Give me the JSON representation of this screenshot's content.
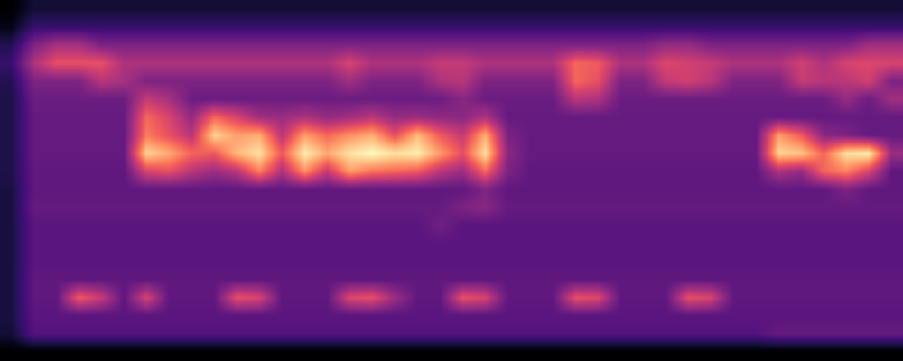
{
  "chart_data": {
    "type": "heatmap",
    "tick_labels": false,
    "cells": [
      [
        15,
        22,
        22,
        22,
        22,
        22,
        22,
        22,
        22,
        22,
        22,
        22,
        22,
        22,
        22,
        22,
        22,
        22,
        22,
        22,
        22,
        22,
        22,
        22,
        22,
        22,
        22,
        22,
        22,
        22,
        22,
        22,
        22,
        22,
        22,
        22,
        22,
        22,
        22,
        22
      ],
      [
        18,
        28,
        28,
        28,
        28,
        28,
        28,
        28,
        28,
        28,
        28,
        28,
        28,
        28,
        28,
        28,
        28,
        28,
        28,
        28,
        28,
        28,
        28,
        28,
        28,
        28,
        28,
        28,
        28,
        28,
        28,
        28,
        28,
        28,
        28,
        28,
        28,
        28,
        28,
        28
      ],
      [
        25,
        40,
        47,
        47,
        40,
        40,
        40,
        40,
        40,
        40,
        40,
        40,
        40,
        40,
        40,
        40,
        40,
        40,
        40,
        40,
        40,
        40,
        40,
        40,
        40,
        40,
        40,
        40,
        40,
        44,
        44,
        40,
        40,
        40,
        40,
        40,
        40,
        40,
        46,
        46
      ],
      [
        28,
        48,
        58,
        58,
        58,
        48,
        48,
        48,
        48,
        48,
        48,
        48,
        48,
        48,
        48,
        55,
        48,
        48,
        48,
        52,
        52,
        48,
        48,
        48,
        48,
        62,
        60,
        48,
        48,
        56,
        54,
        52,
        48,
        48,
        48,
        54,
        48,
        55,
        56,
        55
      ],
      [
        25,
        40,
        40,
        40,
        50,
        47,
        40,
        40,
        40,
        40,
        40,
        40,
        40,
        40,
        40,
        46,
        40,
        40,
        40,
        48,
        50,
        40,
        40,
        40,
        40,
        62,
        58,
        40,
        40,
        52,
        54,
        50,
        40,
        40,
        40,
        52,
        50,
        50,
        54,
        40
      ],
      [
        24,
        37,
        37,
        37,
        37,
        37,
        52,
        47,
        37,
        37,
        37,
        37,
        37,
        37,
        37,
        37,
        37,
        37,
        37,
        37,
        42,
        37,
        37,
        37,
        37,
        50,
        48,
        37,
        37,
        37,
        37,
        37,
        37,
        37,
        37,
        37,
        37,
        44,
        37,
        46
      ],
      [
        24,
        36,
        36,
        36,
        36,
        36,
        62,
        55,
        44,
        62,
        55,
        46,
        45,
        48,
        44,
        46,
        50,
        44,
        45,
        43,
        42,
        48,
        36,
        36,
        36,
        36,
        36,
        36,
        36,
        36,
        36,
        36,
        36,
        36,
        36,
        36,
        36,
        36,
        36,
        36
      ],
      [
        24,
        36,
        36,
        36,
        36,
        36,
        65,
        58,
        50,
        78,
        70,
        72,
        50,
        70,
        62,
        68,
        72,
        58,
        74,
        60,
        52,
        72,
        40,
        36,
        36,
        36,
        36,
        36,
        36,
        36,
        36,
        36,
        36,
        36,
        70,
        60,
        42,
        40,
        36,
        36
      ],
      [
        24,
        36,
        36,
        36,
        36,
        36,
        78,
        72,
        62,
        60,
        74,
        80,
        60,
        82,
        72,
        80,
        84,
        80,
        82,
        70,
        58,
        80,
        42,
        36,
        36,
        36,
        36,
        36,
        36,
        36,
        36,
        36,
        36,
        36,
        78,
        76,
        62,
        80,
        82,
        45
      ],
      [
        24,
        35,
        35,
        35,
        35,
        35,
        55,
        58,
        50,
        45,
        50,
        66,
        48,
        68,
        52,
        70,
        64,
        62,
        60,
        50,
        45,
        62,
        40,
        35,
        35,
        35,
        35,
        35,
        35,
        35,
        35,
        35,
        35,
        35,
        48,
        44,
        62,
        66,
        55,
        35
      ],
      [
        23,
        35,
        35,
        35,
        35,
        35,
        35,
        35,
        35,
        35,
        35,
        35,
        35,
        35,
        35,
        35,
        35,
        35,
        35,
        35,
        35,
        40,
        35,
        35,
        35,
        35,
        35,
        35,
        35,
        35,
        35,
        35,
        35,
        35,
        35,
        35,
        35,
        40,
        35,
        35
      ],
      [
        23,
        36,
        36,
        36,
        36,
        36,
        36,
        36,
        36,
        36,
        36,
        36,
        36,
        36,
        36,
        36,
        36,
        36,
        36,
        36,
        40,
        42,
        36,
        36,
        36,
        36,
        36,
        36,
        36,
        36,
        36,
        36,
        36,
        36,
        36,
        36,
        36,
        36,
        36,
        36
      ],
      [
        23,
        34,
        34,
        34,
        34,
        34,
        34,
        34,
        34,
        34,
        34,
        34,
        34,
        34,
        34,
        34,
        34,
        34,
        34,
        38,
        34,
        34,
        34,
        34,
        34,
        34,
        34,
        34,
        34,
        34,
        34,
        34,
        34,
        34,
        34,
        34,
        34,
        34,
        34,
        34
      ],
      [
        23,
        34,
        34,
        34,
        34,
        34,
        34,
        34,
        34,
        34,
        34,
        34,
        34,
        34,
        34,
        34,
        34,
        34,
        34,
        34,
        34,
        34,
        34,
        34,
        34,
        34,
        34,
        34,
        34,
        34,
        34,
        34,
        34,
        34,
        34,
        34,
        34,
        34,
        34,
        34
      ],
      [
        23,
        34,
        34,
        34,
        34,
        34,
        34,
        34,
        34,
        34,
        34,
        34,
        34,
        34,
        34,
        34,
        34,
        34,
        34,
        34,
        34,
        34,
        34,
        34,
        34,
        34,
        34,
        34,
        34,
        34,
        34,
        34,
        34,
        34,
        34,
        34,
        34,
        34,
        34,
        34
      ],
      [
        23,
        35,
        35,
        35,
        35,
        35,
        35,
        35,
        35,
        35,
        35,
        35,
        35,
        35,
        35,
        35,
        35,
        35,
        35,
        35,
        35,
        35,
        35,
        35,
        35,
        35,
        35,
        35,
        35,
        35,
        35,
        35,
        35,
        35,
        35,
        35,
        35,
        35,
        35,
        35
      ],
      [
        23,
        35,
        35,
        60,
        52,
        35,
        55,
        35,
        35,
        35,
        58,
        55,
        35,
        35,
        35,
        56,
        58,
        45,
        35,
        35,
        58,
        55,
        35,
        35,
        35,
        58,
        56,
        35,
        35,
        35,
        58,
        55,
        35,
        35,
        35,
        35,
        35,
        35,
        35,
        35
      ],
      [
        23,
        34,
        34,
        34,
        34,
        34,
        34,
        34,
        34,
        34,
        34,
        34,
        34,
        34,
        34,
        34,
        34,
        34,
        34,
        34,
        34,
        34,
        34,
        34,
        34,
        34,
        34,
        34,
        34,
        34,
        34,
        34,
        34,
        34,
        34,
        34,
        34,
        34,
        34,
        34
      ],
      [
        22,
        33,
        33,
        33,
        33,
        33,
        33,
        33,
        33,
        33,
        33,
        33,
        33,
        33,
        33,
        33,
        33,
        33,
        33,
        33,
        33,
        33,
        33,
        33,
        33,
        33,
        33,
        33,
        33,
        33,
        33,
        33,
        33,
        33,
        36,
        36,
        36,
        36,
        36,
        36
      ],
      [
        15,
        15,
        15,
        15,
        15,
        15,
        15,
        15,
        15,
        15,
        15,
        15,
        15,
        15,
        15,
        15,
        15,
        15,
        15,
        15,
        15,
        15,
        15,
        15,
        15,
        15,
        15,
        15,
        15,
        15,
        15,
        15,
        15,
        15,
        15,
        15,
        15,
        15,
        15,
        15
      ]
    ]
  }
}
